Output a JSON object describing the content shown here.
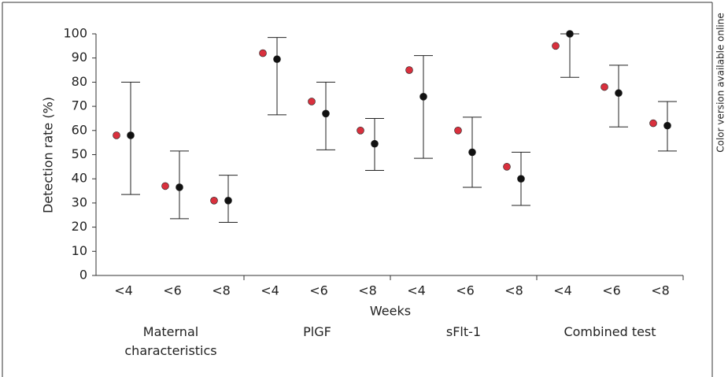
{
  "chart_data": {
    "type": "dot-errorbar",
    "y_label": "Detection rate (%)",
    "x_label": "Weeks",
    "side_note": "Color version available online",
    "categories": [
      "<4",
      "<6",
      "<8",
      "<4",
      "<6",
      "<8",
      "<4",
      "<6",
      "<8",
      "<4",
      "<6",
      "<8"
    ],
    "groups": [
      "Maternal characteristics",
      "PlGF",
      "sFlt-1",
      "Combined test"
    ],
    "series": [
      {
        "color": "#d9303d",
        "values": [
          58,
          37,
          31,
          92,
          72,
          60,
          85,
          60,
          45,
          95,
          78,
          63
        ]
      },
      {
        "color": "#111111",
        "values": [
          58,
          36.5,
          31,
          89.5,
          67,
          54.5,
          74,
          51,
          40,
          100,
          75.5,
          62
        ],
        "lower": [
          33.5,
          23.5,
          22,
          66.5,
          52,
          43.5,
          48.5,
          36.5,
          29,
          82,
          61.5,
          51.5
        ],
        "upper": [
          80,
          51.5,
          41.5,
          98.5,
          80,
          65,
          91,
          65.5,
          51,
          100,
          87,
          72
        ]
      }
    ],
    "ylim": [
      0,
      100
    ],
    "yticks": [
      0,
      10,
      20,
      30,
      40,
      50,
      60,
      70,
      80,
      90,
      100
    ]
  }
}
